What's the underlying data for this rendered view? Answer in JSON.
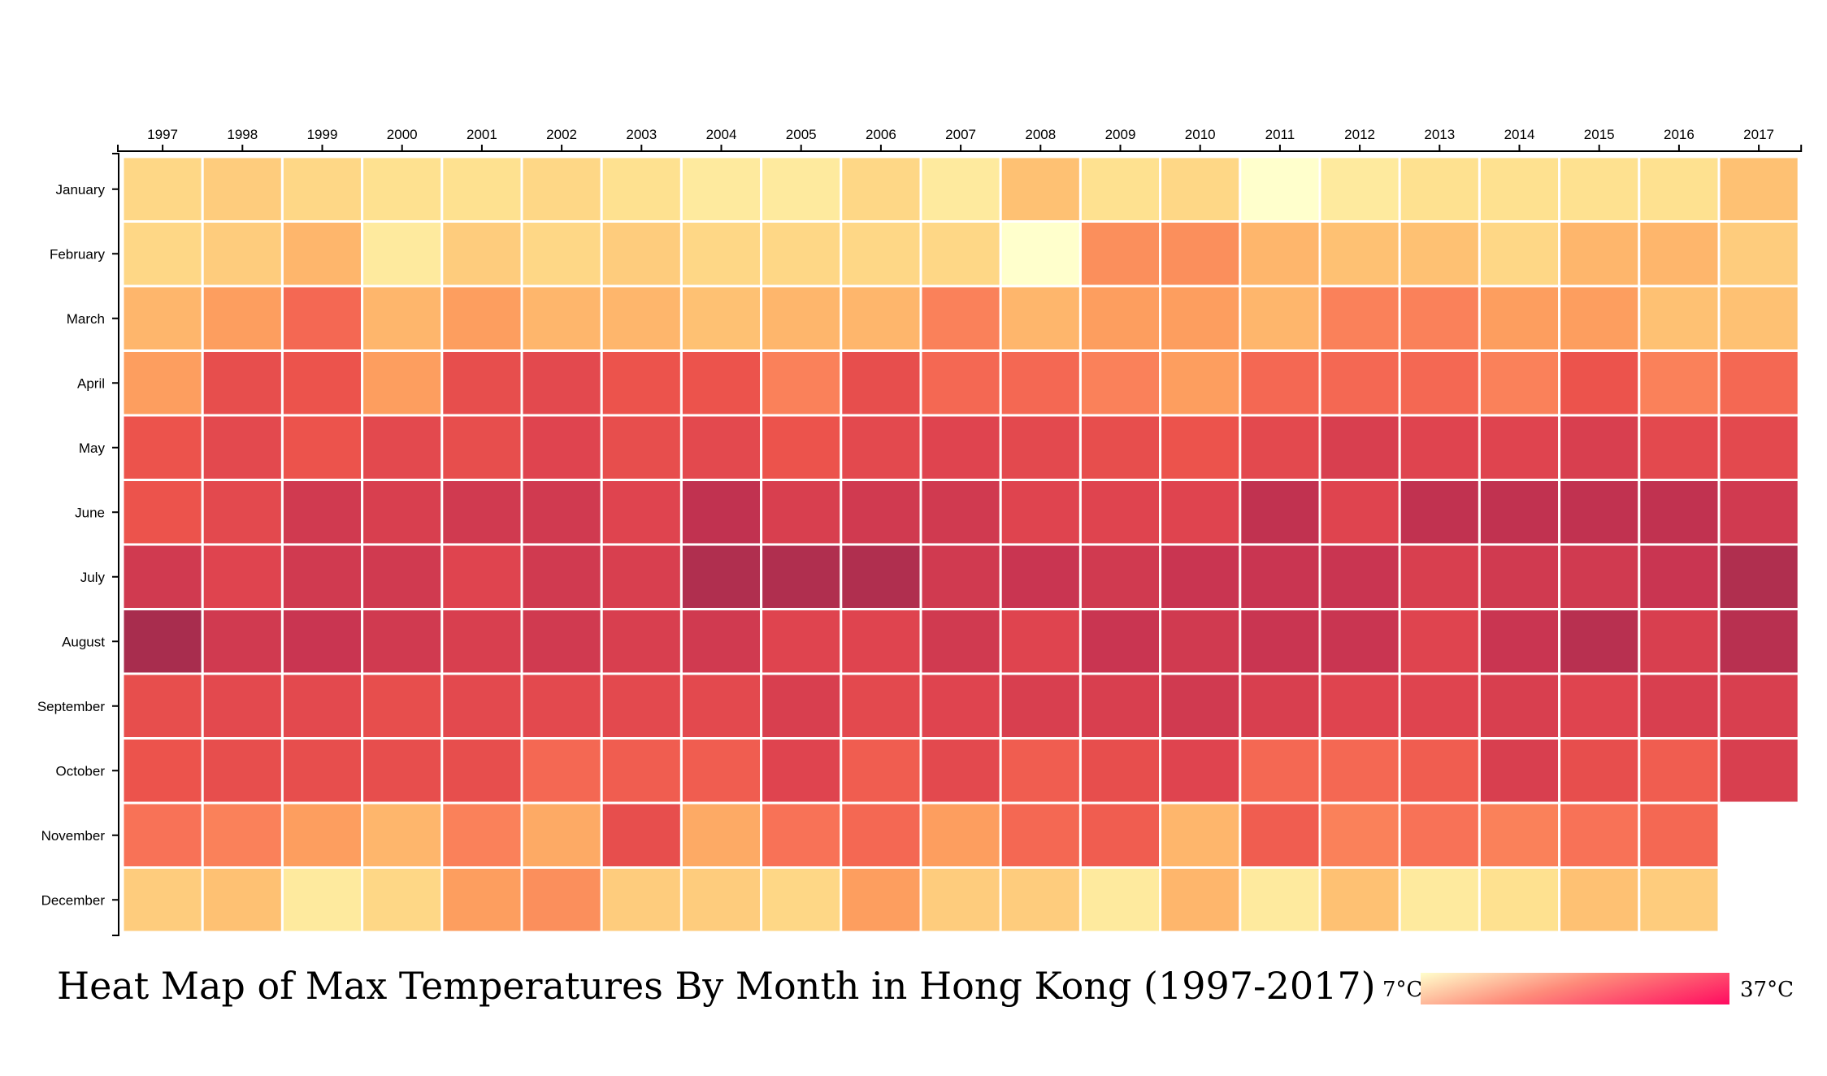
{
  "chart_data": {
    "type": "heatmap",
    "title": "Heat Map of Max Temperatures By Month in Hong Kong (1997-2017)",
    "x": [
      "1997",
      "1998",
      "1999",
      "2000",
      "2001",
      "2002",
      "2003",
      "2004",
      "2005",
      "2006",
      "2007",
      "2008",
      "2009",
      "2010",
      "2011",
      "2012",
      "2013",
      "2014",
      "2015",
      "2016",
      "2017"
    ],
    "y": [
      "January",
      "February",
      "March",
      "April",
      "May",
      "June",
      "July",
      "August",
      "September",
      "October",
      "November",
      "December"
    ],
    "values": [
      [
        12,
        13,
        12,
        11,
        11,
        12,
        11,
        10,
        10,
        12,
        10,
        14,
        11,
        12,
        7,
        10,
        11,
        11,
        11,
        11,
        14
      ],
      [
        12,
        13,
        15,
        10,
        13,
        12,
        13,
        12,
        12,
        12,
        12,
        7,
        18,
        18,
        15,
        14,
        14,
        12,
        15,
        15,
        13
      ],
      [
        15,
        17,
        21,
        15,
        17,
        15,
        15,
        14,
        15,
        15,
        19,
        15,
        17,
        17,
        15,
        19,
        19,
        17,
        17,
        14,
        14
      ],
      [
        17,
        24,
        23,
        17,
        24,
        25,
        23,
        23,
        19,
        24,
        21,
        21,
        19,
        17,
        21,
        21,
        21,
        19,
        23,
        19,
        21
      ],
      [
        23,
        25,
        23,
        25,
        24,
        26,
        24,
        25,
        23,
        25,
        26,
        25,
        24,
        23,
        25,
        27,
        26,
        26,
        27,
        25,
        25
      ],
      [
        23,
        25,
        28,
        27,
        28,
        28,
        26,
        30,
        27,
        28,
        28,
        26,
        26,
        26,
        30,
        26,
        30,
        30,
        30,
        30,
        28
      ],
      [
        28,
        26,
        28,
        28,
        26,
        28,
        27,
        32,
        32,
        32,
        28,
        29,
        28,
        29,
        29,
        29,
        27,
        28,
        28,
        29,
        32
      ],
      [
        33,
        28,
        29,
        28,
        27,
        28,
        27,
        28,
        26,
        26,
        28,
        26,
        29,
        28,
        29,
        29,
        26,
        29,
        31,
        27,
        31
      ],
      [
        24,
        25,
        25,
        24,
        25,
        25,
        25,
        25,
        27,
        25,
        26,
        27,
        27,
        28,
        27,
        26,
        26,
        27,
        26,
        27,
        27
      ],
      [
        23,
        24,
        24,
        24,
        24,
        21,
        22,
        22,
        26,
        22,
        25,
        22,
        24,
        26,
        21,
        21,
        22,
        27,
        24,
        22,
        27
      ],
      [
        20,
        19,
        17,
        15,
        19,
        16,
        24,
        16,
        20,
        21,
        17,
        21,
        22,
        15,
        22,
        19,
        20,
        19,
        20,
        21,
        null
      ],
      [
        13,
        14,
        10,
        12,
        17,
        18,
        13,
        13,
        12,
        17,
        13,
        13,
        10,
        15,
        10,
        14,
        10,
        11,
        14,
        13,
        null
      ]
    ],
    "legend": {
      "min_label": "7°C",
      "max_label": "37°C",
      "min": 7,
      "max": 37,
      "placement": "bottom-right"
    },
    "xlabel": "",
    "ylabel": "",
    "grid": false
  }
}
